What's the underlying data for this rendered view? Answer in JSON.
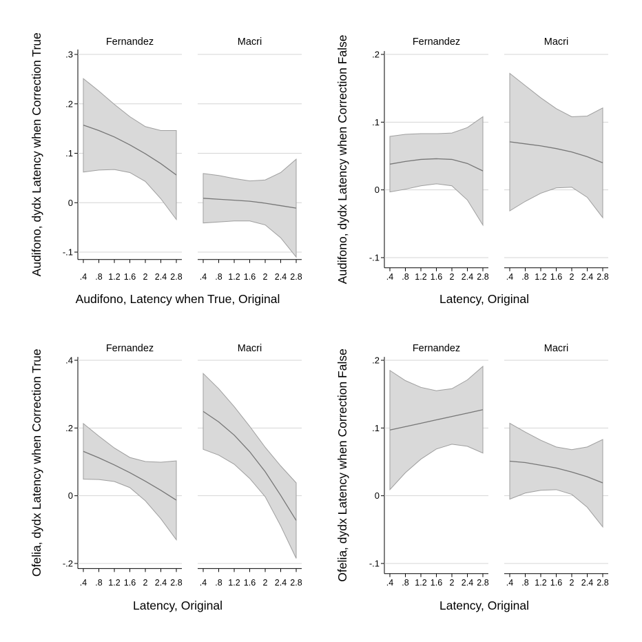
{
  "colors": {
    "band_fill": "#d9d9d9",
    "band_stroke": "#9e9e9e",
    "line": "#767676",
    "grid": "#d4d4d4",
    "axis": "#000000"
  },
  "chart_data": [
    {
      "type": "line",
      "ylabel": "Audifono, dydx Latency when Correction True",
      "xlabel": "Audifono, Latency when True, Original",
      "ylim": [
        -0.115,
        0.31
      ],
      "yticks": [
        -0.1,
        0,
        0.1,
        0.2,
        0.3
      ],
      "ytick_labels": [
        "-.1",
        "0",
        ".1",
        ".2",
        ".3"
      ],
      "xlim": [
        0.3,
        2.9
      ],
      "xticks": [
        0.4,
        0.8,
        1.2,
        1.6,
        2.0,
        2.4,
        2.8
      ],
      "xtick_labels": [
        ".4",
        ".8",
        "1.2",
        "1.6",
        "2",
        "2.4",
        "2.8"
      ],
      "grid": true,
      "panels": [
        {
          "title": "Fernandez",
          "x": [
            0.4,
            0.8,
            1.2,
            1.6,
            2.0,
            2.4,
            2.8
          ],
          "estimate": [
            0.157,
            0.146,
            0.133,
            0.117,
            0.099,
            0.079,
            0.056
          ],
          "ci_low": [
            0.062,
            0.066,
            0.067,
            0.061,
            0.043,
            0.008,
            -0.034
          ],
          "ci_high": [
            0.251,
            0.226,
            0.199,
            0.174,
            0.154,
            0.146,
            0.146
          ]
        },
        {
          "title": "Macri",
          "x": [
            0.4,
            0.8,
            1.2,
            1.6,
            2.0,
            2.4,
            2.8
          ],
          "estimate": [
            0.009,
            0.007,
            0.005,
            0.003,
            -0.001,
            -0.006,
            -0.011
          ],
          "ci_low": [
            -0.041,
            -0.039,
            -0.037,
            -0.037,
            -0.045,
            -0.071,
            -0.11
          ],
          "ci_high": [
            0.059,
            0.055,
            0.049,
            0.044,
            0.046,
            0.061,
            0.088
          ]
        }
      ]
    },
    {
      "type": "line",
      "ylabel": "Audifono, dydx Latency when Correction False",
      "xlabel": "Latency, Original",
      "ylim": [
        -0.115,
        0.205
      ],
      "yticks": [
        -0.1,
        0,
        0.1,
        0.2
      ],
      "ytick_labels": [
        "-.1",
        "0",
        ".1",
        ".2"
      ],
      "xlim": [
        0.3,
        2.9
      ],
      "xticks": [
        0.4,
        0.8,
        1.2,
        1.6,
        2.0,
        2.4,
        2.8
      ],
      "xtick_labels": [
        ".4",
        ".8",
        "1.2",
        "1.6",
        "2",
        "2.4",
        "2.8"
      ],
      "grid": true,
      "panels": [
        {
          "title": "Fernandez",
          "x": [
            0.4,
            0.8,
            1.2,
            1.6,
            2.0,
            2.4,
            2.8
          ],
          "estimate": [
            0.038,
            0.042,
            0.045,
            0.046,
            0.045,
            0.039,
            0.028
          ],
          "ci_low": [
            -0.003,
            0.001,
            0.006,
            0.009,
            0.006,
            -0.015,
            -0.052
          ],
          "ci_high": [
            0.079,
            0.082,
            0.083,
            0.083,
            0.084,
            0.092,
            0.108
          ]
        },
        {
          "title": "Macri",
          "x": [
            0.4,
            0.8,
            1.2,
            1.6,
            2.0,
            2.4,
            2.8
          ],
          "estimate": [
            0.071,
            0.068,
            0.065,
            0.061,
            0.056,
            0.049,
            0.04
          ],
          "ci_low": [
            -0.031,
            -0.017,
            -0.005,
            0.003,
            0.004,
            -0.011,
            -0.041
          ],
          "ci_high": [
            0.172,
            0.154,
            0.136,
            0.12,
            0.108,
            0.109,
            0.121
          ]
        }
      ]
    },
    {
      "type": "line",
      "ylabel": "Ofelia, dydx Latency when Correction True",
      "xlabel": "Latency, Original",
      "ylim": [
        -0.215,
        0.41
      ],
      "yticks": [
        -0.2,
        0,
        0.2,
        0.4
      ],
      "ytick_labels": [
        "-.2",
        "0",
        ".2",
        ".4"
      ],
      "xlim": [
        0.3,
        2.9
      ],
      "xticks": [
        0.4,
        0.8,
        1.2,
        1.6,
        2.0,
        2.4,
        2.8
      ],
      "xtick_labels": [
        ".4",
        ".8",
        "1.2",
        "1.6",
        "2",
        "2.4",
        "2.8"
      ],
      "grid": true,
      "panels": [
        {
          "title": "Fernandez",
          "x": [
            0.4,
            0.8,
            1.2,
            1.6,
            2.0,
            2.4,
            2.8
          ],
          "estimate": [
            0.131,
            0.112,
            0.091,
            0.068,
            0.043,
            0.016,
            -0.013
          ],
          "ci_low": [
            0.049,
            0.048,
            0.042,
            0.024,
            -0.015,
            -0.068,
            -0.13
          ],
          "ci_high": [
            0.213,
            0.176,
            0.141,
            0.113,
            0.101,
            0.099,
            0.103
          ]
        },
        {
          "title": "Macri",
          "x": [
            0.4,
            0.8,
            1.2,
            1.6,
            2.0,
            2.4,
            2.8
          ],
          "estimate": [
            0.249,
            0.218,
            0.179,
            0.13,
            0.071,
            0.001,
            -0.073
          ],
          "ci_low": [
            0.137,
            0.12,
            0.093,
            0.051,
            -0.003,
            -0.089,
            -0.185
          ],
          "ci_high": [
            0.361,
            0.316,
            0.263,
            0.205,
            0.143,
            0.088,
            0.038
          ]
        }
      ]
    },
    {
      "type": "line",
      "ylabel": "Ofelia, dydx Latency when Correction False",
      "xlabel": "Latency, Original",
      "ylim": [
        -0.115,
        0.205
      ],
      "yticks": [
        -0.1,
        0,
        0.1,
        0.2
      ],
      "ytick_labels": [
        "-.1",
        "0",
        ".1",
        ".2"
      ],
      "xlim": [
        0.3,
        2.9
      ],
      "xticks": [
        0.4,
        0.8,
        1.2,
        1.6,
        2.0,
        2.4,
        2.8
      ],
      "xtick_labels": [
        ".4",
        ".8",
        "1.2",
        "1.6",
        "2",
        "2.4",
        "2.8"
      ],
      "grid": true,
      "panels": [
        {
          "title": "Fernandez",
          "x": [
            0.4,
            0.8,
            1.2,
            1.6,
            2.0,
            2.4,
            2.8
          ],
          "estimate": [
            0.097,
            0.102,
            0.107,
            0.112,
            0.117,
            0.122,
            0.127
          ],
          "ci_low": [
            0.009,
            0.034,
            0.054,
            0.069,
            0.076,
            0.073,
            0.063
          ],
          "ci_high": [
            0.185,
            0.17,
            0.16,
            0.155,
            0.158,
            0.171,
            0.191
          ]
        },
        {
          "title": "Macri",
          "x": [
            0.4,
            0.8,
            1.2,
            1.6,
            2.0,
            2.4,
            2.8
          ],
          "estimate": [
            0.051,
            0.049,
            0.045,
            0.041,
            0.035,
            0.028,
            0.019
          ],
          "ci_low": [
            -0.005,
            0.004,
            0.008,
            0.009,
            0.002,
            -0.017,
            -0.046
          ],
          "ci_high": [
            0.107,
            0.094,
            0.082,
            0.072,
            0.068,
            0.072,
            0.083
          ]
        }
      ]
    }
  ]
}
